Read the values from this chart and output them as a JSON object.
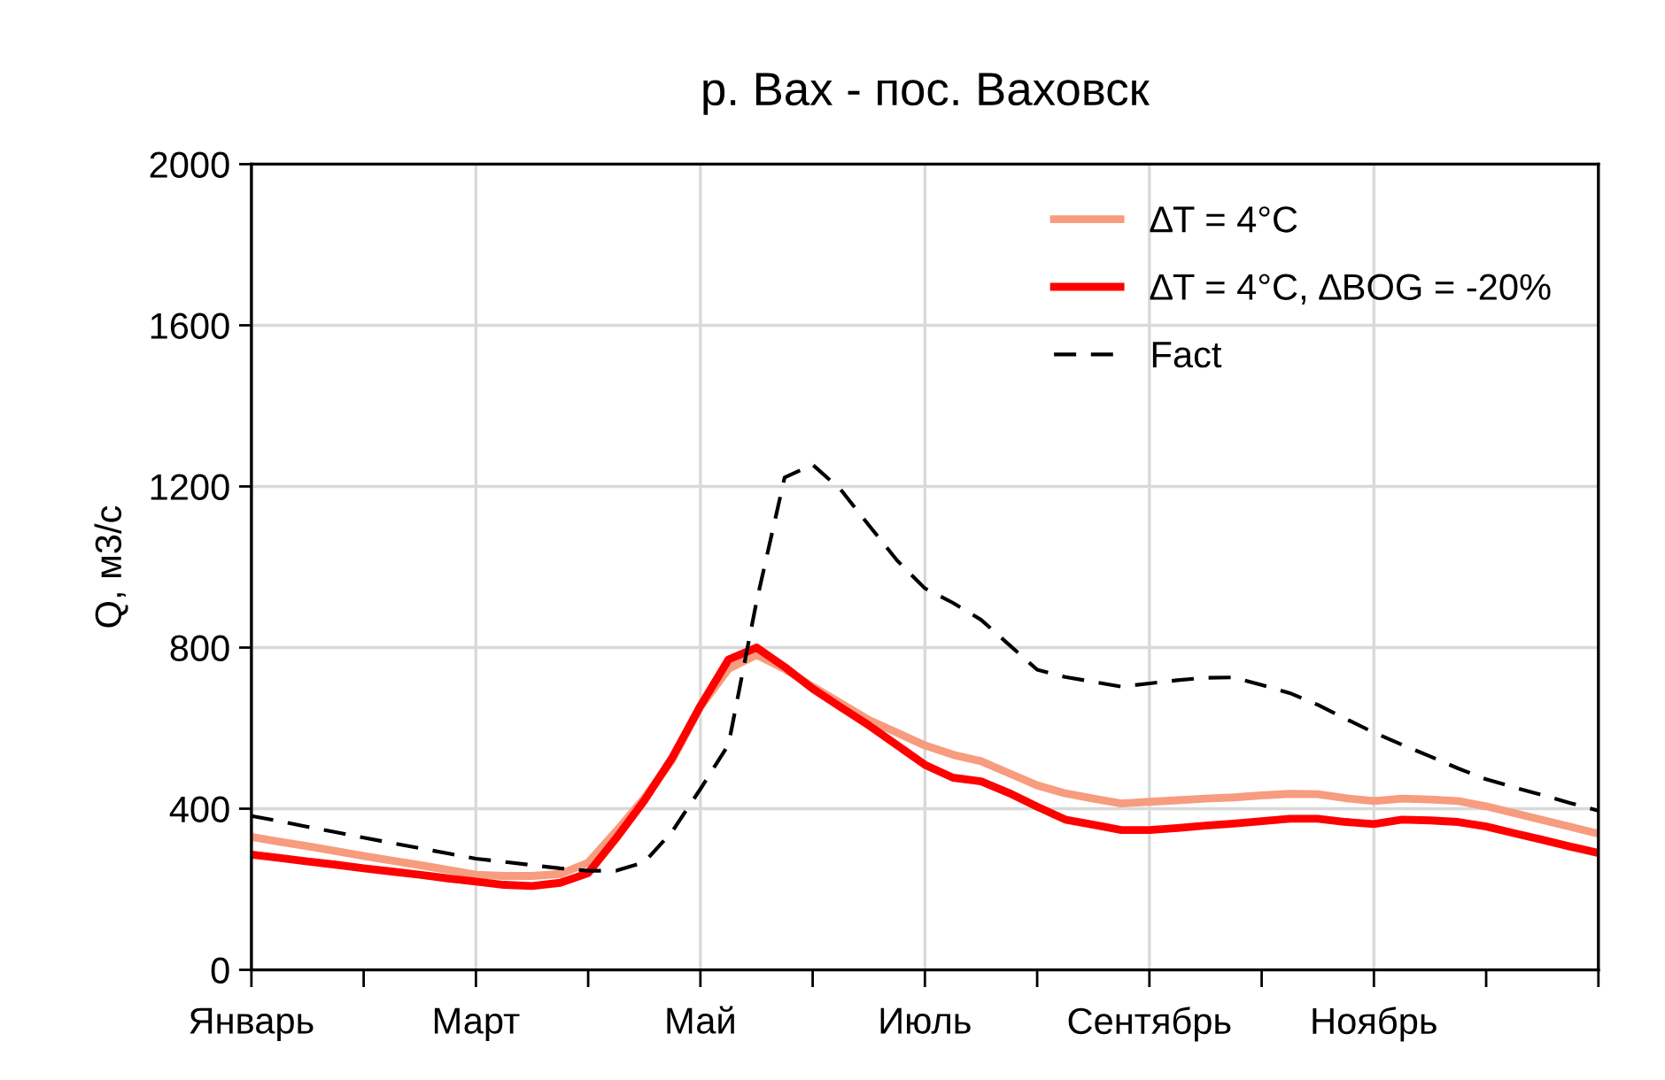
{
  "chart_data": {
    "type": "line",
    "title": "р. Вах - пос. Ваховск",
    "ylabel": "Q, м3/с",
    "categories": [
      "Январь",
      null,
      null,
      null,
      null,
      null,
      null,
      null,
      "Март",
      null,
      null,
      null,
      null,
      null,
      null,
      null,
      "Май",
      null,
      null,
      null,
      null,
      null,
      null,
      null,
      "Июль",
      null,
      null,
      null,
      null,
      null,
      null,
      null,
      "Сентябрь",
      null,
      null,
      null,
      null,
      null,
      null,
      null,
      "Ноябрь",
      null,
      null,
      null,
      null,
      null,
      null,
      null,
      null
    ],
    "ylim": [
      0,
      2000
    ],
    "yticks": [
      0,
      400,
      800,
      1200,
      1600,
      2000
    ],
    "grid": true,
    "legend": "top right",
    "series": [
      {
        "name": "∆T = 4°C",
        "color": "#f79c7e",
        "line_style": "solid",
        "values": [
          330,
          318,
          307,
          295,
          283,
          271,
          260,
          248,
          236,
          233,
          233,
          238,
          266,
          344,
          426,
          522,
          653,
          747,
          782,
          747,
          703,
          662,
          620,
          589,
          557,
          534,
          518,
          488,
          458,
          438,
          425,
          413,
          417,
          421,
          425,
          428,
          433,
          437,
          436,
          426,
          419,
          425,
          423,
          419,
          406,
          389,
          372,
          355,
          338
        ]
      },
      {
        "name": "∆T = 4°C, ∆BOG = -20%",
        "color": "#ff0000",
        "line_style": "solid",
        "values": [
          286,
          278,
          269,
          261,
          252,
          244,
          236,
          227,
          219,
          211,
          208,
          216,
          240,
          327,
          420,
          527,
          655,
          770,
          800,
          752,
          698,
          652,
          607,
          558,
          509,
          477,
          468,
          439,
          405,
          373,
          360,
          347,
          347,
          352,
          358,
          363,
          369,
          375,
          375,
          367,
          362,
          373,
          371,
          367,
          356,
          339,
          323,
          306,
          290
        ]
      },
      {
        "name": "Fact",
        "color": "#000000",
        "line_style": "dashed",
        "values": [
          382,
          369,
          355,
          342,
          328,
          315,
          302,
          289,
          276,
          268,
          260,
          252,
          246,
          246,
          267,
          344,
          449,
          559,
          914,
          1222,
          1254,
          1192,
          1104,
          1017,
          947,
          911,
          869,
          807,
          745,
          727,
          715,
          703,
          711,
          719,
          725,
          726,
          707,
          687,
          658,
          623,
          589,
          559,
          530,
          500,
          473,
          453,
          434,
          414,
          395
        ]
      }
    ]
  }
}
